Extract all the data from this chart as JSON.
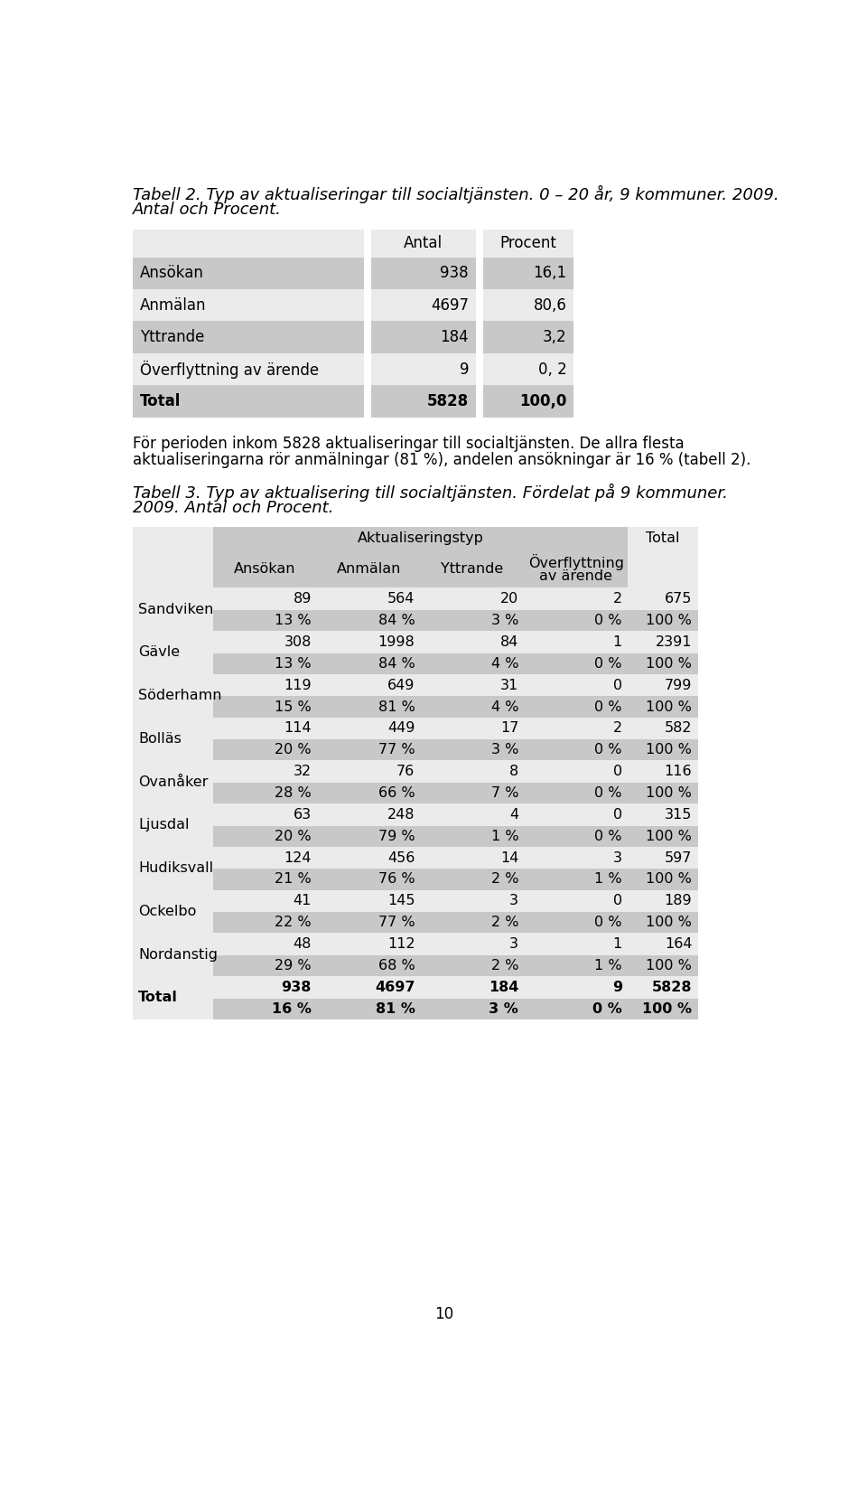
{
  "title2": "Tabell 2. Typ av aktualiseringar till socialtjänsten. 0 – 20 år, 9 kommuner. 2009.",
  "title2_line2": "Antal och Procent.",
  "table2_rows": [
    [
      "Ansökan",
      "938",
      "16,1"
    ],
    [
      "Anmälan",
      "4697",
      "80,6"
    ],
    [
      "Yttrande",
      "184",
      "3,2"
    ],
    [
      "Överflyttning av ärende",
      "9",
      "0, 2"
    ],
    [
      "Total",
      "5828",
      "100,0"
    ]
  ],
  "para_text_1": "För perioden inkom 5828 aktualiseringar till socialtjänsten. De allra flesta",
  "para_text_2": "aktualiseringarna rör anmälningar (81 %), andelen ansökningar är 16 % (tabell 2).",
  "title3": "Tabell 3. Typ av aktualisering till socialtjänsten. Fördelat på 9 kommuner.",
  "title3_line2": "2009. Antal och Procent.",
  "col_group_header": "Aktualiseringstyp",
  "col_headers": [
    "Ansökan",
    "Anmälan",
    "Yttrande",
    "Överflyttning\nav ärende"
  ],
  "col_total_header": "Total",
  "table3_rows": [
    {
      "name": "Sandviken",
      "vals": [
        "89",
        "564",
        "20",
        "2",
        "675"
      ],
      "pcts": [
        "13 %",
        "84 %",
        "3 %",
        "0 %",
        "100 %"
      ]
    },
    {
      "name": "Gävle",
      "vals": [
        "308",
        "1998",
        "84",
        "1",
        "2391"
      ],
      "pcts": [
        "13 %",
        "84 %",
        "4 %",
        "0 %",
        "100 %"
      ]
    },
    {
      "name": "Söderhamn",
      "vals": [
        "119",
        "649",
        "31",
        "0",
        "799"
      ],
      "pcts": [
        "15 %",
        "81 %",
        "4 %",
        "0 %",
        "100 %"
      ]
    },
    {
      "name": "Bolläs",
      "vals": [
        "114",
        "449",
        "17",
        "2",
        "582"
      ],
      "pcts": [
        "20 %",
        "77 %",
        "3 %",
        "0 %",
        "100 %"
      ]
    },
    {
      "name": "Ovanåker",
      "vals": [
        "32",
        "76",
        "8",
        "0",
        "116"
      ],
      "pcts": [
        "28 %",
        "66 %",
        "7 %",
        "0 %",
        "100 %"
      ]
    },
    {
      "name": "Ljusdal",
      "vals": [
        "63",
        "248",
        "4",
        "0",
        "315"
      ],
      "pcts": [
        "20 %",
        "79 %",
        "1 %",
        "0 %",
        "100 %"
      ]
    },
    {
      "name": "Hudiksvall",
      "vals": [
        "124",
        "456",
        "14",
        "3",
        "597"
      ],
      "pcts": [
        "21 %",
        "76 %",
        "2 %",
        "1 %",
        "100 %"
      ]
    },
    {
      "name": "Ockelbo",
      "vals": [
        "41",
        "145",
        "3",
        "0",
        "189"
      ],
      "pcts": [
        "22 %",
        "77 %",
        "2 %",
        "0 %",
        "100 %"
      ]
    },
    {
      "name": "Nordanstig",
      "vals": [
        "48",
        "112",
        "3",
        "1",
        "164"
      ],
      "pcts": [
        "29 %",
        "68 %",
        "2 %",
        "1 %",
        "100 %"
      ]
    },
    {
      "name": "Total",
      "vals": [
        "938",
        "4697",
        "184",
        "9",
        "5828"
      ],
      "pcts": [
        "16 %",
        "81 %",
        "3 %",
        "0 %",
        "100 %"
      ]
    }
  ],
  "bg_color": "#ffffff",
  "cell_gray": "#c8c8c8",
  "row_light": "#ebebeb",
  "page_number": "10",
  "title_fontsize": 13,
  "body_fontsize": 12,
  "table_fontsize": 11.5
}
